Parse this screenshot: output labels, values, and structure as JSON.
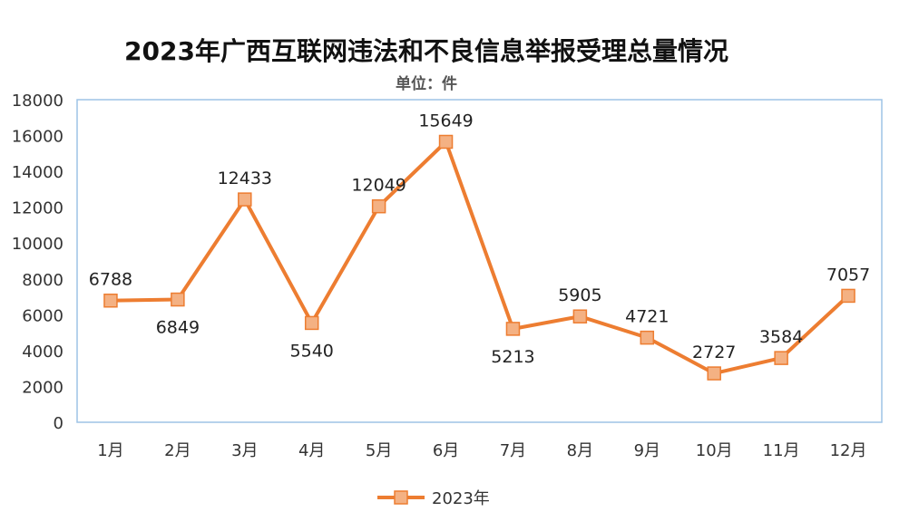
{
  "chart_data": {
    "type": "line",
    "title": "2023年广西互联网违法和不良信息举报受理总量情况",
    "unit_label": "单位：件",
    "categories": [
      "1月",
      "2月",
      "3月",
      "4月",
      "5月",
      "6月",
      "7月",
      "8月",
      "9月",
      "10月",
      "11月",
      "12月"
    ],
    "series": [
      {
        "name": "2023年",
        "values": [
          6788,
          6849,
          12433,
          5540,
          12049,
          15649,
          5213,
          5905,
          4721,
          2727,
          3584,
          7057
        ],
        "color": "#ED7D31",
        "marker_fill": "#F4B183",
        "label_positions": [
          "above",
          "below",
          "above",
          "below",
          "above",
          "above",
          "below",
          "above",
          "above",
          "above",
          "above",
          "above"
        ]
      }
    ],
    "ylim": [
      0,
      18000
    ],
    "yticks": [
      0,
      2000,
      4000,
      6000,
      8000,
      10000,
      12000,
      14000,
      16000,
      18000
    ],
    "plot_border_color": "#9DC3E6",
    "legend_position": "bottom-center",
    "grid": false
  }
}
